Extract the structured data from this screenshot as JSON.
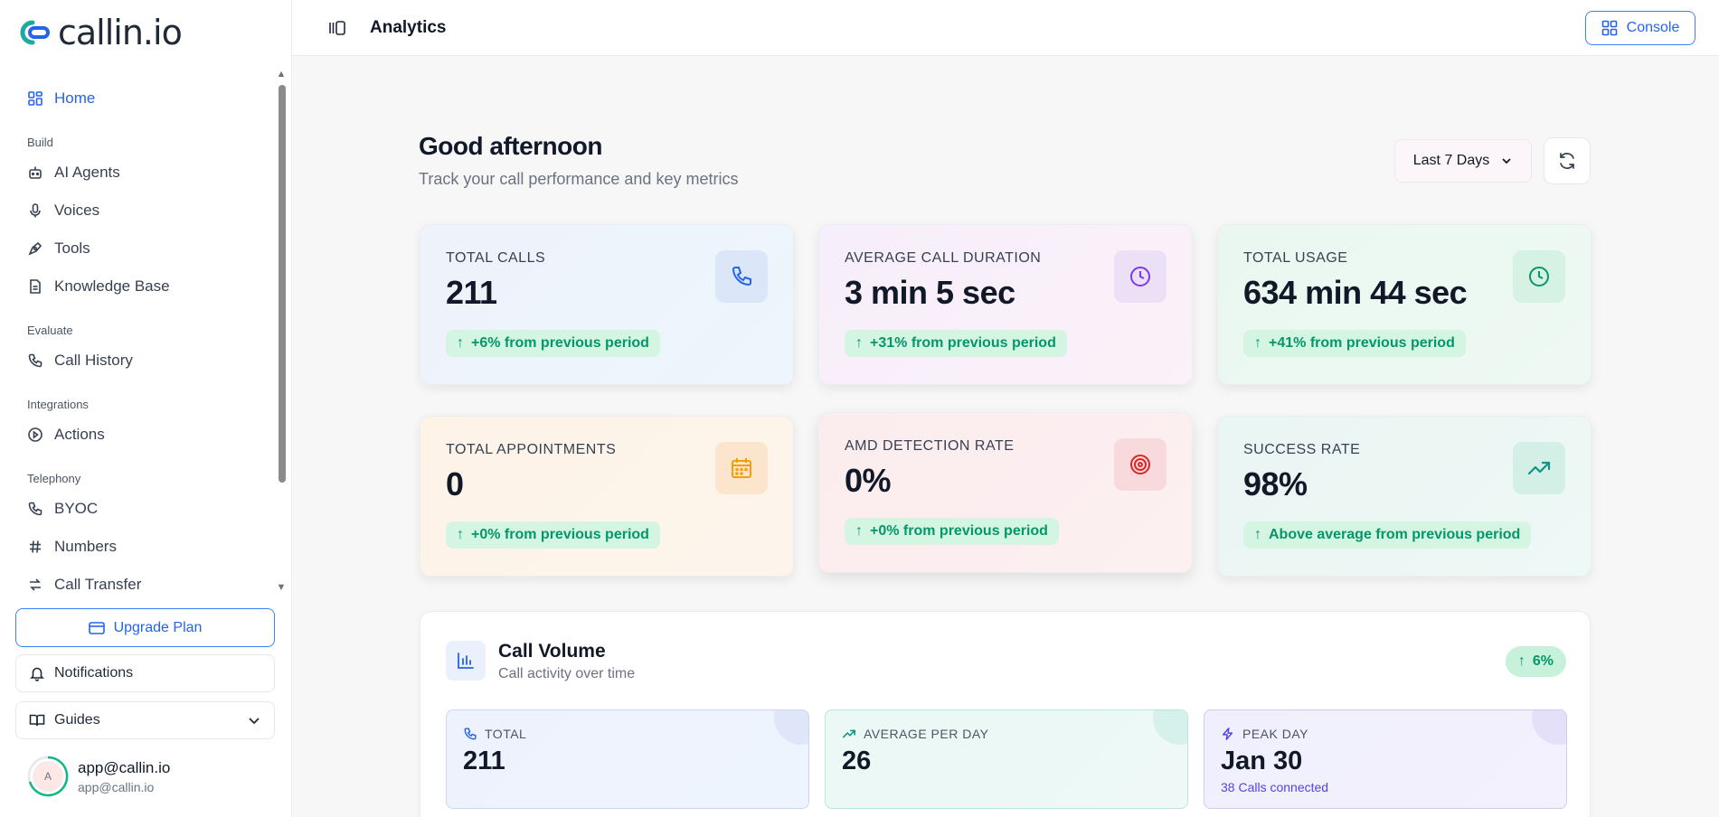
{
  "brand": {
    "name": "callin.io"
  },
  "sidebar": {
    "home": "Home",
    "sections": {
      "build": "Build",
      "evaluate": "Evaluate",
      "integrations": "Integrations",
      "telephony": "Telephony"
    },
    "items": {
      "ai_agents": "AI Agents",
      "voices": "Voices",
      "tools": "Tools",
      "knowledge_base": "Knowledge Base",
      "call_history": "Call History",
      "actions": "Actions",
      "byoc": "BYOC",
      "numbers": "Numbers",
      "call_transfer": "Call Transfer"
    },
    "upgrade": "Upgrade Plan",
    "notifications": "Notifications",
    "guides": "Guides",
    "user": {
      "initial": "A",
      "name": "app@callin.io",
      "email": "app@callin.io"
    }
  },
  "topbar": {
    "title": "Analytics",
    "console": "Console"
  },
  "header": {
    "greeting": "Good afternoon",
    "subtitle": "Track your call performance and key metrics",
    "range": "Last 7 Days"
  },
  "cards": [
    {
      "label": "TOTAL CALLS",
      "value": "211",
      "badge": "+6% from previous period"
    },
    {
      "label": "AVERAGE CALL DURATION",
      "value": "3 min 5 sec",
      "badge": "+31% from previous period"
    },
    {
      "label": "TOTAL USAGE",
      "value": "634 min 44 sec",
      "badge": "+41% from previous period"
    },
    {
      "label": "TOTAL APPOINTMENTS",
      "value": "0",
      "badge": "+0% from previous period"
    },
    {
      "label": "AMD DETECTION RATE",
      "value": "0%",
      "badge": "+0% from previous period"
    },
    {
      "label": "SUCCESS RATE",
      "value": "98%",
      "badge": "Above average from previous period"
    }
  ],
  "volume": {
    "title": "Call Volume",
    "subtitle": "Call activity over time",
    "badge": "6%",
    "stats": [
      {
        "label": "TOTAL",
        "value": "211",
        "note": ""
      },
      {
        "label": "AVERAGE PER DAY",
        "value": "26",
        "note": ""
      },
      {
        "label": "PEAK DAY",
        "value": "Jan 30",
        "note": "38 Calls connected"
      }
    ]
  },
  "colors": {
    "accent": "#2563eb",
    "success": "#059669",
    "success_bg": "#d5f5e3"
  }
}
